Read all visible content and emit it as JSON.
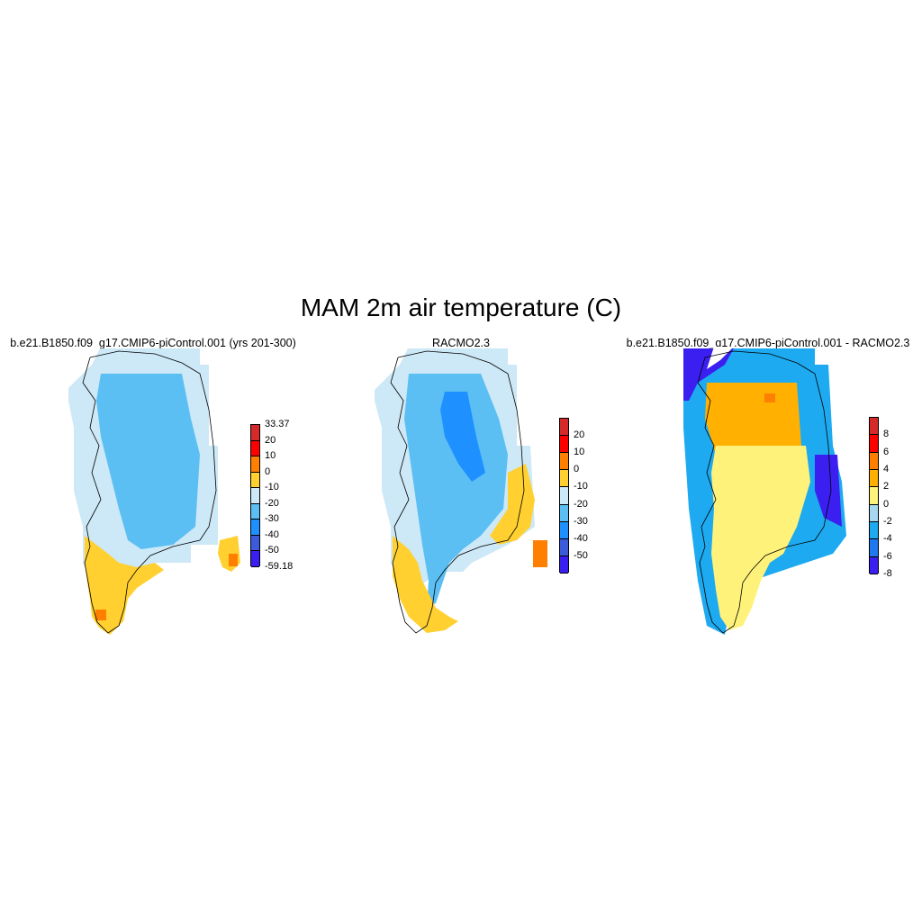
{
  "figure": {
    "title": "MAM 2m air temperature (C)"
  },
  "panels": [
    {
      "title": "b.e21.B1850.f09_g17.CMIP6-piControl.001 (yrs 201-300)",
      "colorbar": {
        "colors": [
          "#d62a2a",
          "#ff0000",
          "#ff8000",
          "#ffd030",
          "#cde8f6",
          "#5bbff3",
          "#1e90ff",
          "#3b5bdb",
          "#3b1ff0"
        ],
        "labels": [
          "33.37",
          "20",
          "10",
          "0",
          "-10",
          "-20",
          "-30",
          "-40",
          "-50",
          "-59.18"
        ]
      }
    },
    {
      "title": "RACMO2.3",
      "colorbar": {
        "colors": [
          "#d62a2a",
          "#ff0000",
          "#ff8000",
          "#ffd030",
          "#cde8f6",
          "#5bbff3",
          "#1e90ff",
          "#3b5bdb",
          "#3b1ff0"
        ],
        "labels": [
          "20",
          "10",
          "0",
          "-10",
          "-20",
          "-30",
          "-40",
          "-50"
        ]
      }
    },
    {
      "title": "b.e21.B1850.f09_g17.CMIP6-piControl.001 - RACMO2.3",
      "colorbar": {
        "colors": [
          "#d62a2a",
          "#ff0000",
          "#ff8000",
          "#ffb000",
          "#fff27a",
          "#a8d8f0",
          "#1eaaf0",
          "#1e78f0",
          "#3b1ff0"
        ],
        "labels": [
          "8",
          "6",
          "4",
          "2",
          "0",
          "-2",
          "-4",
          "-6",
          "-8"
        ]
      }
    }
  ]
}
